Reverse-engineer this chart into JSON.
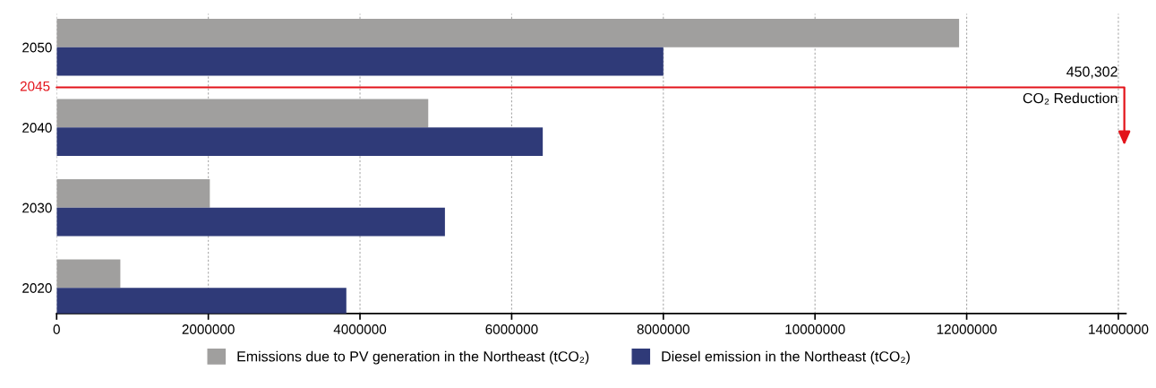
{
  "chart_data": {
    "type": "bar",
    "orientation": "horizontal",
    "categories": [
      "2050",
      "2040",
      "2030",
      "2020"
    ],
    "series": [
      {
        "name": "Emissions due to PV generation in the Northeast (tCO₂)",
        "color": "#a09f9e",
        "values": [
          11900000,
          4900000,
          2020000,
          840000
        ]
      },
      {
        "name": "Diesel emission in the Northeast (tCO₂)",
        "color": "#2f3a78",
        "values": [
          8000000,
          6410000,
          5120000,
          3820000
        ]
      }
    ],
    "xlim": [
      0,
      14100000
    ],
    "xticks": [
      0,
      2000000,
      4000000,
      6000000,
      8000000,
      10000000,
      12000000,
      14000000
    ],
    "grid": "x",
    "legend": "bottom",
    "annotations": [
      "2045",
      "450,302",
      "CO₂ Reduction"
    ]
  }
}
